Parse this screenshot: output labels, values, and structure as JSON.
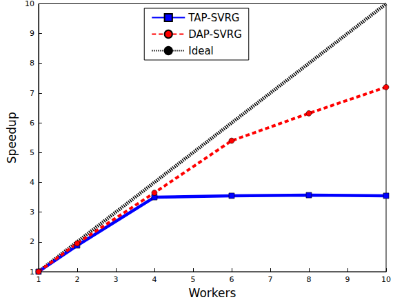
{
  "chart_data": {
    "type": "line",
    "x_label": "Workers",
    "y_label": "Speedup",
    "x": [
      1,
      2,
      4,
      6,
      8,
      10
    ],
    "series": [
      {
        "name": "TAP-SVRG",
        "color": "#0000ff",
        "marker": "square",
        "line_style": "solid",
        "values": [
          1,
          1.88,
          3.5,
          3.55,
          3.57,
          3.55
        ]
      },
      {
        "name": "DAP-SVRG",
        "color": "#ff0000",
        "marker": "circle",
        "line_style": "dashed",
        "values": [
          1,
          1.95,
          3.65,
          5.4,
          6.32,
          7.2
        ]
      },
      {
        "name": "Ideal",
        "color": "#000000",
        "marker": "none",
        "line_style": "dotted",
        "values": [
          1,
          2,
          4,
          6,
          8,
          10
        ]
      }
    ],
    "xlim": [
      1,
      10
    ],
    "xticks": [
      1,
      2,
      3,
      4,
      5,
      6,
      7,
      8,
      9,
      10
    ],
    "ylim": [
      1,
      10
    ],
    "yticks": [
      1,
      2,
      3,
      4,
      5,
      6,
      7,
      8,
      9,
      10
    ],
    "grid": false,
    "legend": "upper center"
  }
}
